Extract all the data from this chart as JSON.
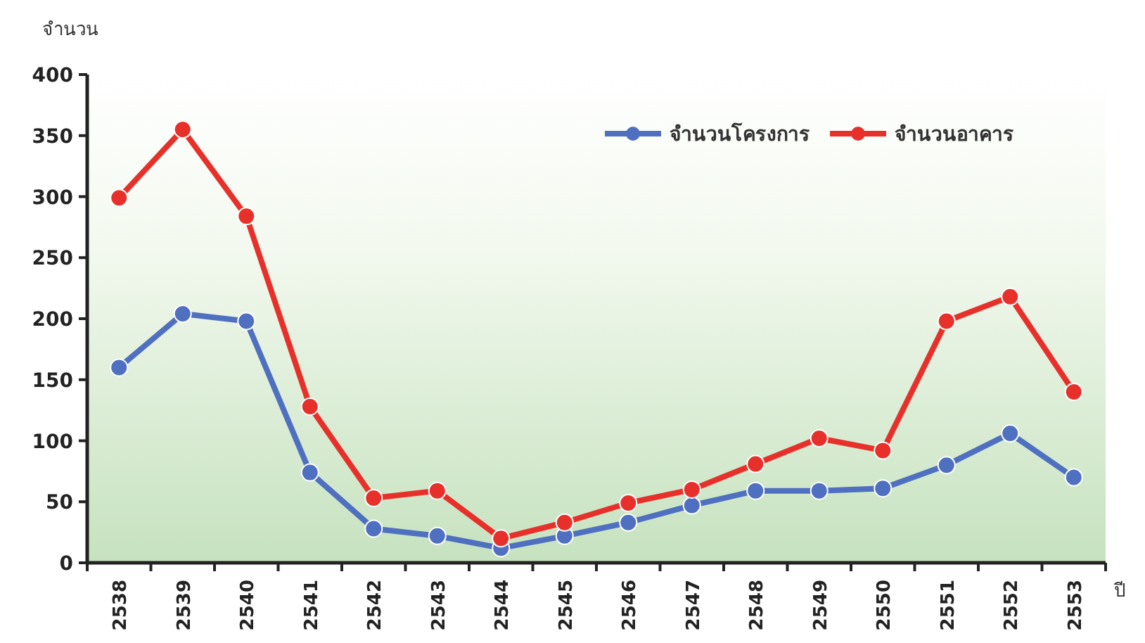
{
  "chart_data": {
    "type": "line",
    "ylabel": "จำนวน",
    "xlabel": "ปี",
    "categories": [
      "2538",
      "2539",
      "2540",
      "2541",
      "2542",
      "2543",
      "2544",
      "2545",
      "2546",
      "2547",
      "2548",
      "2549",
      "2550",
      "2551",
      "2552",
      "2553"
    ],
    "series": [
      {
        "name": "จำนวนโครงการ",
        "color": "#4f6fc0",
        "values": [
          160,
          204,
          198,
          74,
          28,
          22,
          12,
          22,
          33,
          47,
          59,
          59,
          61,
          80,
          106,
          70
        ]
      },
      {
        "name": "จำนวนอาคาร",
        "color": "#e8302a",
        "values": [
          299,
          355,
          284,
          128,
          53,
          59,
          20,
          33,
          49,
          60,
          81,
          102,
          92,
          198,
          218,
          140
        ]
      }
    ],
    "ylim": [
      0,
      400
    ],
    "yticks": [
      0,
      50,
      100,
      150,
      200,
      250,
      300,
      350,
      400
    ],
    "grid": false,
    "legend": "top right",
    "marker": "circle",
    "line_style": "solid"
  }
}
